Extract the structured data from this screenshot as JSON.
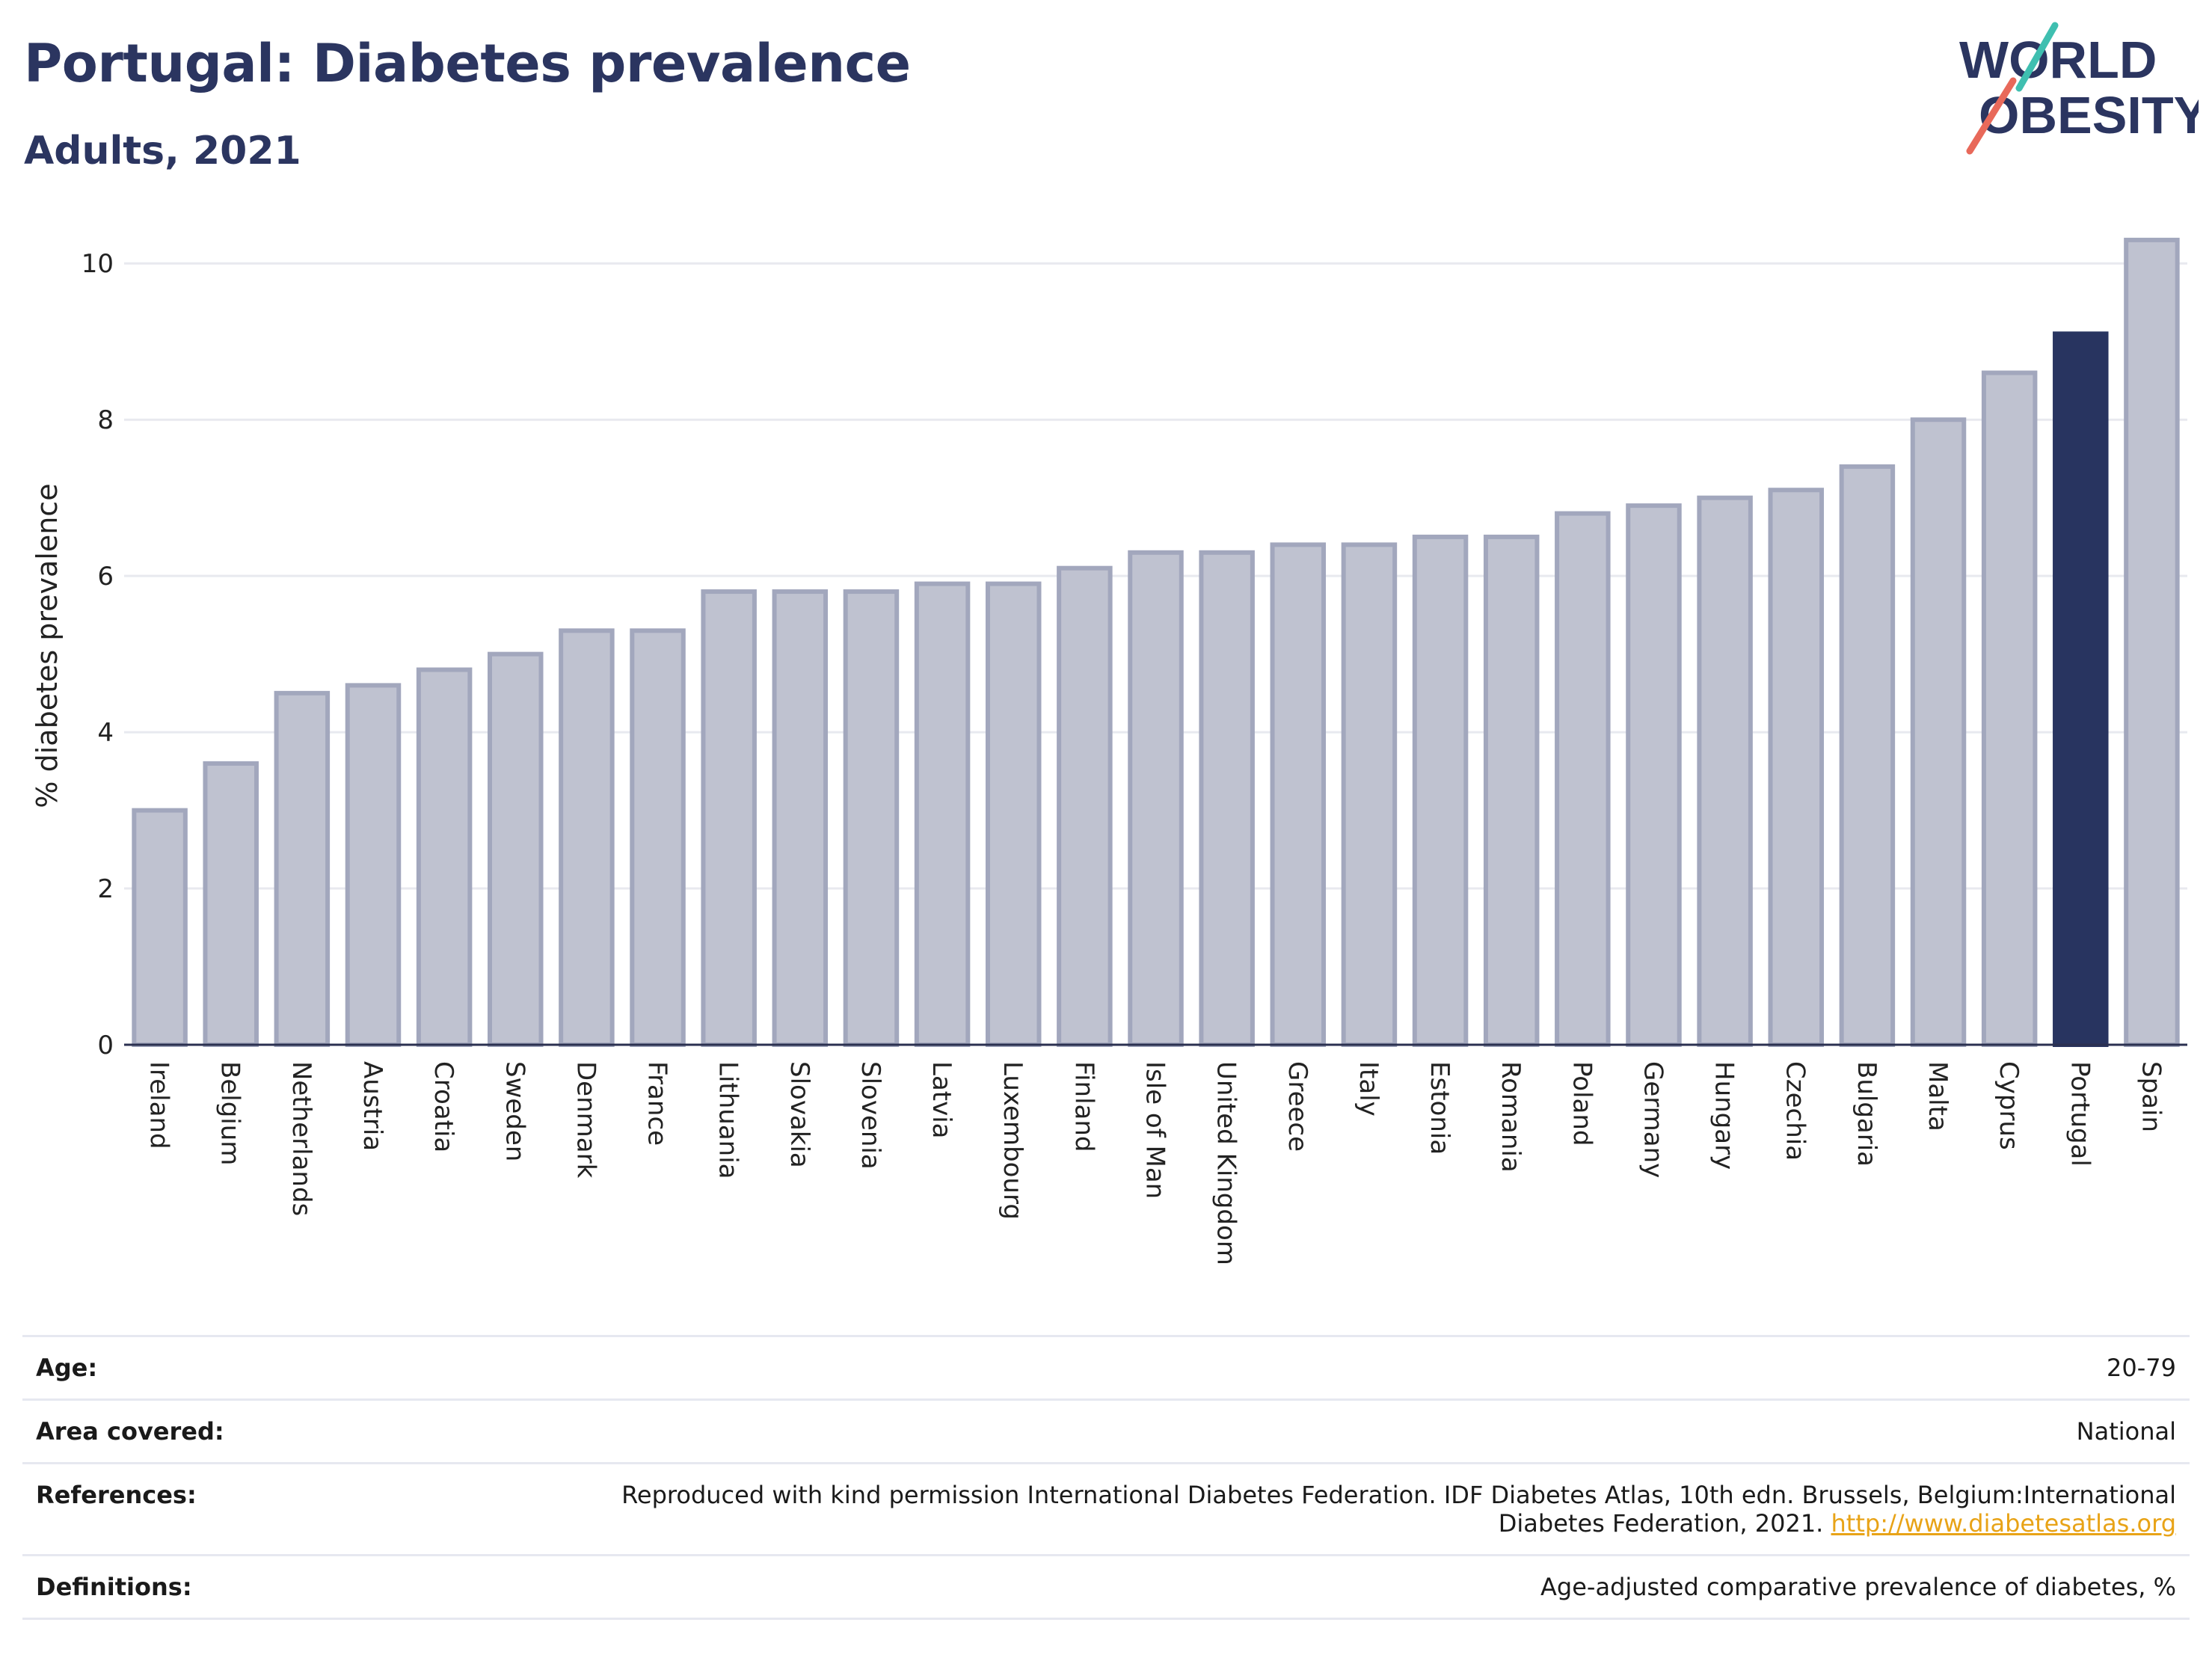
{
  "header": {
    "title": "Portugal: Diabetes prevalence",
    "subtitle": "Adults, 2021",
    "logo_line1": "WORLD",
    "logo_line2": "OBESITY"
  },
  "chart_data": {
    "type": "bar",
    "ylabel": "% diabetes prevalence",
    "ylim": [
      0,
      10.5
    ],
    "yticks": [
      0,
      2,
      4,
      6,
      8,
      10
    ],
    "grid": true,
    "categories": [
      "Ireland",
      "Belgium",
      "Netherlands",
      "Austria",
      "Croatia",
      "Sweden",
      "Denmark",
      "France",
      "Lithuania",
      "Slovakia",
      "Slovenia",
      "Latvia",
      "Luxembourg",
      "Finland",
      "Isle of Man",
      "United Kingdom",
      "Greece",
      "Italy",
      "Estonia",
      "Romania",
      "Poland",
      "Germany",
      "Hungary",
      "Czechia",
      "Bulgaria",
      "Malta",
      "Cyprus",
      "Portugal",
      "Spain"
    ],
    "values": [
      3.0,
      3.6,
      4.5,
      4.6,
      4.8,
      5.0,
      5.3,
      5.3,
      5.8,
      5.8,
      5.8,
      5.9,
      5.9,
      6.1,
      6.3,
      6.3,
      6.4,
      6.4,
      6.5,
      6.5,
      6.8,
      6.9,
      7.0,
      7.1,
      7.4,
      8.0,
      8.6,
      9.1,
      10.3
    ],
    "highlight": "Portugal",
    "colors": {
      "bar_fill": "#bfc2d0",
      "bar_stroke": "#a2a7bd",
      "highlight": "#283460",
      "grid": "#e8e9ef",
      "axis": "#2b3050"
    }
  },
  "meta": {
    "age_label": "Age:",
    "age_value": "20-79",
    "area_label": "Area covered:",
    "area_value": "National",
    "references_label": "References:",
    "references_text": "Reproduced with kind permission International Diabetes Federation.  IDF Diabetes Atlas, 10th edn. Brussels, Belgium:International",
    "references_text2": "Diabetes Federation, 2021.",
    "references_link": "http://www.diabetesatlas.org",
    "definitions_label": "Definitions:",
    "definitions_value": "Age-adjusted comparative prevalence of diabetes, %"
  }
}
